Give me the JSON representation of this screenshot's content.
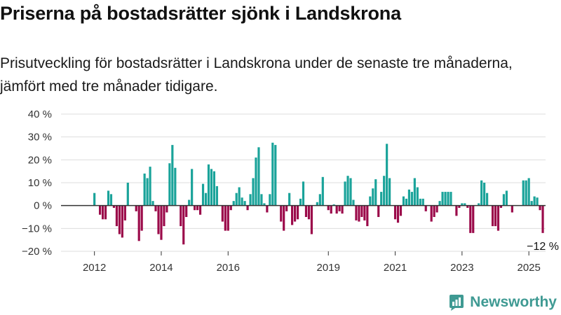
{
  "title": "Priserna på bostadsrätter sjönk i Landskrona",
  "subtitle": "Prisutveckling för bostadsrätter i Landskrona under de senaste tre månaderna, jämfört med tre månader tidigare.",
  "brand": {
    "name": "Newsworthy",
    "icon": "newsworthy-logo-icon"
  },
  "colors": {
    "positive": "#1aa39a",
    "negative": "#9b0a4a",
    "grid": "#dddddd",
    "zero": "#333333",
    "text": "#333333"
  },
  "chart_data": {
    "type": "bar",
    "title": "",
    "xlabel": "",
    "ylabel": "",
    "ylim": [
      -20,
      40
    ],
    "yticks": [
      -20,
      -10,
      0,
      10,
      20,
      30,
      40
    ],
    "ytick_labels": [
      "−20 %",
      "−10 %",
      "0 %",
      "10 %",
      "20 %",
      "30 %",
      "40 %"
    ],
    "xlim": [
      2011.0,
      2025.5
    ],
    "xticks": [
      2012,
      2014,
      2016,
      2019,
      2021,
      2023,
      2025
    ],
    "xtick_labels": [
      "2012",
      "2014",
      "2016",
      "2019",
      "2021",
      "2023",
      "2025"
    ],
    "grid": true,
    "x_start": "2012-01",
    "x_step": "month",
    "values": [
      5.5,
      0,
      -4,
      -6,
      -6,
      6.5,
      5,
      -1,
      -9,
      -12.5,
      -14,
      -6.5,
      10,
      0,
      0,
      -2.5,
      -15.5,
      -11,
      14,
      12,
      17,
      2,
      -2.5,
      -12.5,
      -15,
      -9,
      -3,
      18.5,
      26.5,
      16.5,
      0,
      -9,
      -17,
      -5,
      2.5,
      16,
      -2,
      -2,
      -4,
      9.5,
      5.5,
      18,
      16,
      15,
      8.5,
      0,
      -7,
      -11,
      -11,
      -2,
      2,
      5.5,
      8,
      3.5,
      2,
      -2,
      5,
      12,
      21,
      25.5,
      5,
      1,
      -3,
      5,
      27.5,
      26.5,
      0,
      -7,
      -11,
      -2.5,
      5.5,
      -8.5,
      -7,
      -6,
      3,
      10.5,
      -5,
      -6,
      -12.5,
      0,
      1.5,
      5,
      12.5,
      0,
      -2,
      -3.5,
      0.5,
      -3.5,
      -2.5,
      -3.5,
      10.5,
      13,
      12,
      2.5,
      -6.5,
      -7,
      -5,
      -6.5,
      -9,
      4,
      7.5,
      11.5,
      -5,
      6,
      13,
      27,
      12,
      0,
      -6,
      -7.5,
      -4.5,
      4,
      3,
      7,
      6,
      12,
      8,
      3,
      3,
      -2.5,
      0,
      -7,
      -5,
      -3,
      2,
      6,
      6,
      6,
      6,
      0,
      -4.5,
      -1,
      1,
      1,
      -1,
      -12,
      -12,
      0,
      1,
      11,
      10,
      5.5,
      0,
      -9,
      -9,
      -11,
      -1,
      5,
      6.5,
      0,
      -3,
      0,
      0,
      0,
      11,
      11,
      12,
      2,
      4,
      3.5,
      -2,
      -12
    ],
    "annotations": [
      {
        "text": "−12 %"
      }
    ]
  }
}
